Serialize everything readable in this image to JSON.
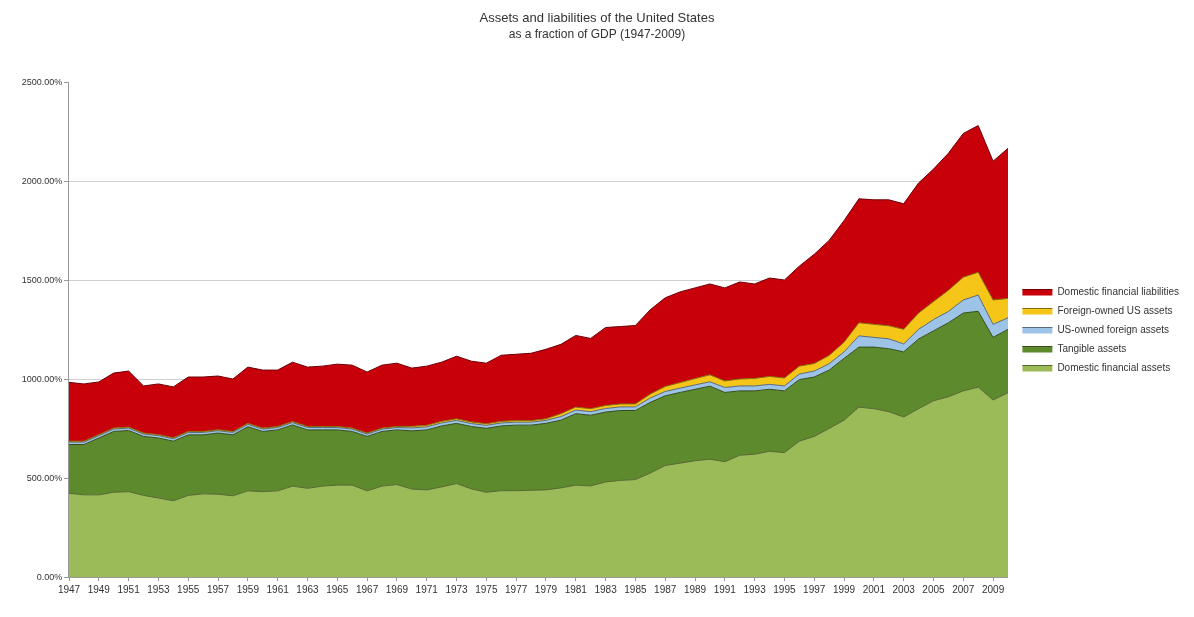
{
  "chart_data": {
    "type": "area",
    "stacked": true,
    "title": "Assets and liabilities of the United States",
    "subtitle": "as a fraction of GDP (1947-2009)",
    "x": [
      1947,
      1948,
      1949,
      1950,
      1951,
      1952,
      1953,
      1954,
      1955,
      1956,
      1957,
      1958,
      1959,
      1960,
      1961,
      1962,
      1963,
      1964,
      1965,
      1966,
      1967,
      1968,
      1969,
      1970,
      1971,
      1972,
      1973,
      1974,
      1975,
      1976,
      1977,
      1978,
      1979,
      1980,
      1981,
      1982,
      1983,
      1984,
      1985,
      1986,
      1987,
      1988,
      1989,
      1990,
      1991,
      1992,
      1993,
      1994,
      1995,
      1996,
      1997,
      1998,
      1999,
      2000,
      2001,
      2002,
      2003,
      2004,
      2005,
      2006,
      2007,
      2008,
      2009,
      2010
    ],
    "series": [
      {
        "name": "Domestic financial assets",
        "color": "#9bbb59",
        "values": [
          423,
          415,
          415,
          428,
          431,
          412,
          399,
          385,
          412,
          420,
          418,
          410,
          435,
          431,
          435,
          459,
          448,
          459,
          464,
          464,
          435,
          459,
          467,
          444,
          440,
          455,
          472,
          445,
          428,
          436,
          436,
          438,
          440,
          450,
          464,
          460,
          480,
          488,
          492,
          525,
          563,
          575,
          587,
          595,
          582,
          615,
          620,
          635,
          628,
          686,
          710,
          750,
          792,
          858,
          850,
          835,
          808,
          850,
          890,
          910,
          940,
          959,
          894,
          931
        ]
      },
      {
        "name": "Tangible assets",
        "color": "#5e8a2e",
        "values": [
          246,
          254,
          287,
          307,
          309,
          298,
          303,
          301,
          306,
          298,
          309,
          308,
          324,
          304,
          308,
          309,
          295,
          284,
          279,
          271,
          275,
          276,
          276,
          294,
          303,
          308,
          304,
          315,
          323,
          327,
          331,
          329,
          336,
          342,
          361,
          357,
          353,
          353,
          349,
          357,
          352,
          357,
          361,
          369,
          350,
          325,
          320,
          313,
          312,
          311,
          300,
          295,
          312,
          303,
          311,
          318,
          329,
          352,
          353,
          374,
          393,
          383,
          316,
          320
        ]
      },
      {
        "name": "US-owned foreign assets",
        "color": "#9dc3e6",
        "values": [
          12,
          12,
          12,
          12,
          12,
          12,
          12,
          12,
          12,
          12,
          12,
          12,
          12,
          12,
          12,
          12,
          12,
          12,
          12,
          12,
          12,
          12,
          12,
          15,
          15,
          15,
          15,
          15,
          15,
          15,
          15,
          15,
          15,
          18,
          18,
          18,
          18,
          18,
          18,
          22,
          22,
          22,
          22,
          22,
          25,
          25,
          25,
          25,
          25,
          28,
          30,
          32,
          33,
          57,
          49,
          50,
          40,
          49,
          57,
          57,
          66,
          82,
          66,
          58
        ]
      },
      {
        "name": "Foreign-owned US assets",
        "color": "#f5c518",
        "values": [
          5,
          5,
          5,
          5,
          5,
          5,
          5,
          5,
          5,
          5,
          5,
          5,
          5,
          5,
          5,
          5,
          5,
          5,
          5,
          5,
          5,
          5,
          5,
          8,
          8,
          8,
          8,
          8,
          8,
          8,
          8,
          8,
          8,
          15,
          15,
          15,
          15,
          15,
          15,
          20,
          25,
          28,
          32,
          35,
          33,
          35,
          38,
          40,
          40,
          40,
          38,
          42,
          49,
          66,
          66,
          66,
          74,
          82,
          91,
          107,
          115,
          115,
          123,
          98
        ]
      },
      {
        "name": "Domestic financial liabilities",
        "color": "#c8000a",
        "values": [
          297,
          289,
          266,
          278,
          283,
          238,
          256,
          257,
          275,
          275,
          271,
          265,
          284,
          293,
          285,
          300,
          300,
          305,
          315,
          318,
          308,
          318,
          320,
          294,
          299,
          299,
          316,
          307,
          306,
          334,
          335,
          340,
          351,
          350,
          362,
          355,
          394,
          391,
          396,
          426,
          448,
          458,
          458,
          459,
          470,
          490,
          477,
          497,
          495,
          505,
          552,
          581,
          614,
          626,
          629,
          636,
          634,
          657,
          669,
          692,
          726,
          741,
          701,
          758
        ]
      }
    ],
    "xlim": [
      1947,
      2010
    ],
    "xticks": [
      1947,
      1949,
      1951,
      1953,
      1955,
      1957,
      1959,
      1961,
      1963,
      1965,
      1967,
      1969,
      1971,
      1973,
      1975,
      1977,
      1979,
      1981,
      1983,
      1985,
      1987,
      1989,
      1991,
      1993,
      1995,
      1997,
      1999,
      2001,
      2003,
      2005,
      2007,
      2009
    ],
    "ylim": [
      0,
      2500
    ],
    "yticks": [
      {
        "value": 0,
        "label": "0.00%"
      },
      {
        "value": 500,
        "label": "500.00%"
      },
      {
        "value": 1000,
        "label": "1000.00%"
      },
      {
        "value": 1500,
        "label": "1500.00%"
      },
      {
        "value": 2000,
        "label": "2000.00%"
      },
      {
        "value": 2500,
        "label": "2500.00%"
      }
    ],
    "grid": "y",
    "legend": "right"
  }
}
